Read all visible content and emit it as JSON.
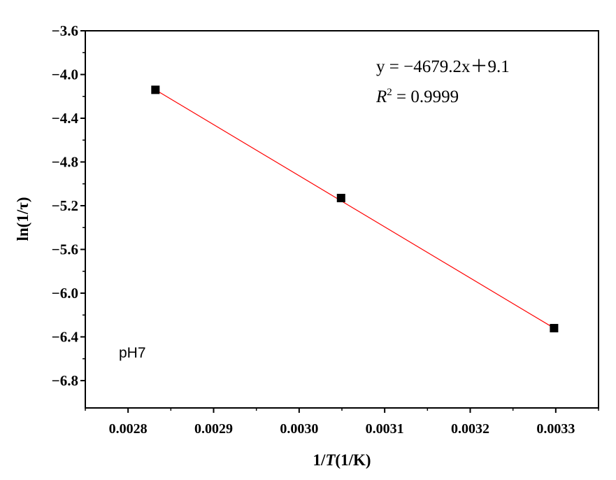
{
  "chart_data": {
    "type": "scatter",
    "xlabel": "1/T(1/K)",
    "ylabel": "ln(1/τ)",
    "xlim": [
      0.00275,
      0.00335
    ],
    "ylim": [
      -7.05,
      -3.6
    ],
    "x_ticks": [
      0.0028,
      0.0029,
      0.003,
      0.0031,
      0.0032,
      0.0033
    ],
    "x_tick_labels": [
      "0.0028",
      "0.0029",
      "0.0030",
      "0.0031",
      "0.0032",
      "0.0033"
    ],
    "y_ticks": [
      -3.6,
      -4.0,
      -4.4,
      -4.8,
      -5.2,
      -5.6,
      -6.0,
      -6.4,
      -6.8
    ],
    "y_tick_labels": [
      "−3.6",
      "−4.0",
      "−4.4",
      "−4.8",
      "−5.2",
      "−5.6",
      "−6.0",
      "−6.4",
      "−6.8"
    ],
    "series": [
      {
        "type": "scatter",
        "x": [
          0.002832,
          0.003049,
          0.003298
        ],
        "y": [
          -4.14,
          -5.13,
          -6.32
        ],
        "color": "#000000",
        "marker": "square"
      }
    ],
    "fit_line": {
      "slope": -4679.2,
      "intercept": 9.1,
      "x_range": [
        0.002832,
        0.003298
      ],
      "y_range": [
        -4.14,
        -6.32
      ],
      "color": "#ff0000"
    },
    "annotations": {
      "equation_prefix": "y = ",
      "equation_rest": "−4679.2x＋9.1",
      "r2_symbol": "R",
      "r2_exp": "2",
      "r2_value": " = 0.9999",
      "condition": "pH7"
    },
    "grid": false,
    "legend": "none"
  }
}
